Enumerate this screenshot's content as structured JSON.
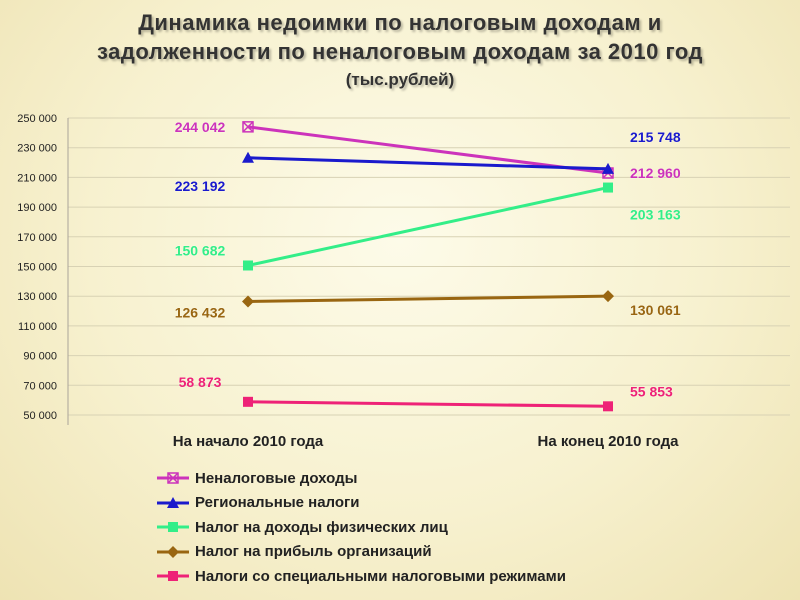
{
  "title": {
    "line1": "Динамика  недоимки по налоговым доходам и",
    "line2": "задолженности по неналоговым доходам  за 2010 год",
    "units": "(тыс.рублей)"
  },
  "chart_data": {
    "type": "line",
    "categories": [
      "На начало 2010 года",
      "На конец 2010 года"
    ],
    "ylim": [
      50000,
      250000
    ],
    "yticks": [
      50000,
      70000,
      90000,
      110000,
      130000,
      150000,
      170000,
      190000,
      210000,
      230000,
      250000
    ],
    "ytick_labels": [
      "50 000",
      "70 000",
      "90 000",
      "110 000",
      "130 000",
      "150 000",
      "170 000",
      "190 000",
      "210 000",
      "230 000",
      "250 000"
    ],
    "grid": true,
    "legend_position": "bottom",
    "series": [
      {
        "name": "Неналоговые доходы",
        "values": [
          244042,
          212960
        ],
        "labels": [
          "244 042",
          "212 960"
        ],
        "color": "#cc33bb",
        "marker": "x-square"
      },
      {
        "name": "Региональные налоги",
        "values": [
          223192,
          215748
        ],
        "labels": [
          "223 192",
          "215 748"
        ],
        "color": "#1a1acc",
        "marker": "triangle"
      },
      {
        "name": "Налог на доходы физических лиц",
        "values": [
          150682,
          203163
        ],
        "labels": [
          "150 682",
          "203 163"
        ],
        "color": "#33ee88",
        "marker": "square"
      },
      {
        "name": "Налог на прибыль организаций",
        "values": [
          126432,
          130061
        ],
        "labels": [
          "126 432",
          "130 061"
        ],
        "color": "#996611",
        "marker": "diamond"
      },
      {
        "name": "Налоги со специальными налоговыми режимами",
        "values": [
          58873,
          55853
        ],
        "labels": [
          "58 873",
          "55 853"
        ],
        "color": "#ee2277",
        "marker": "square"
      }
    ]
  }
}
